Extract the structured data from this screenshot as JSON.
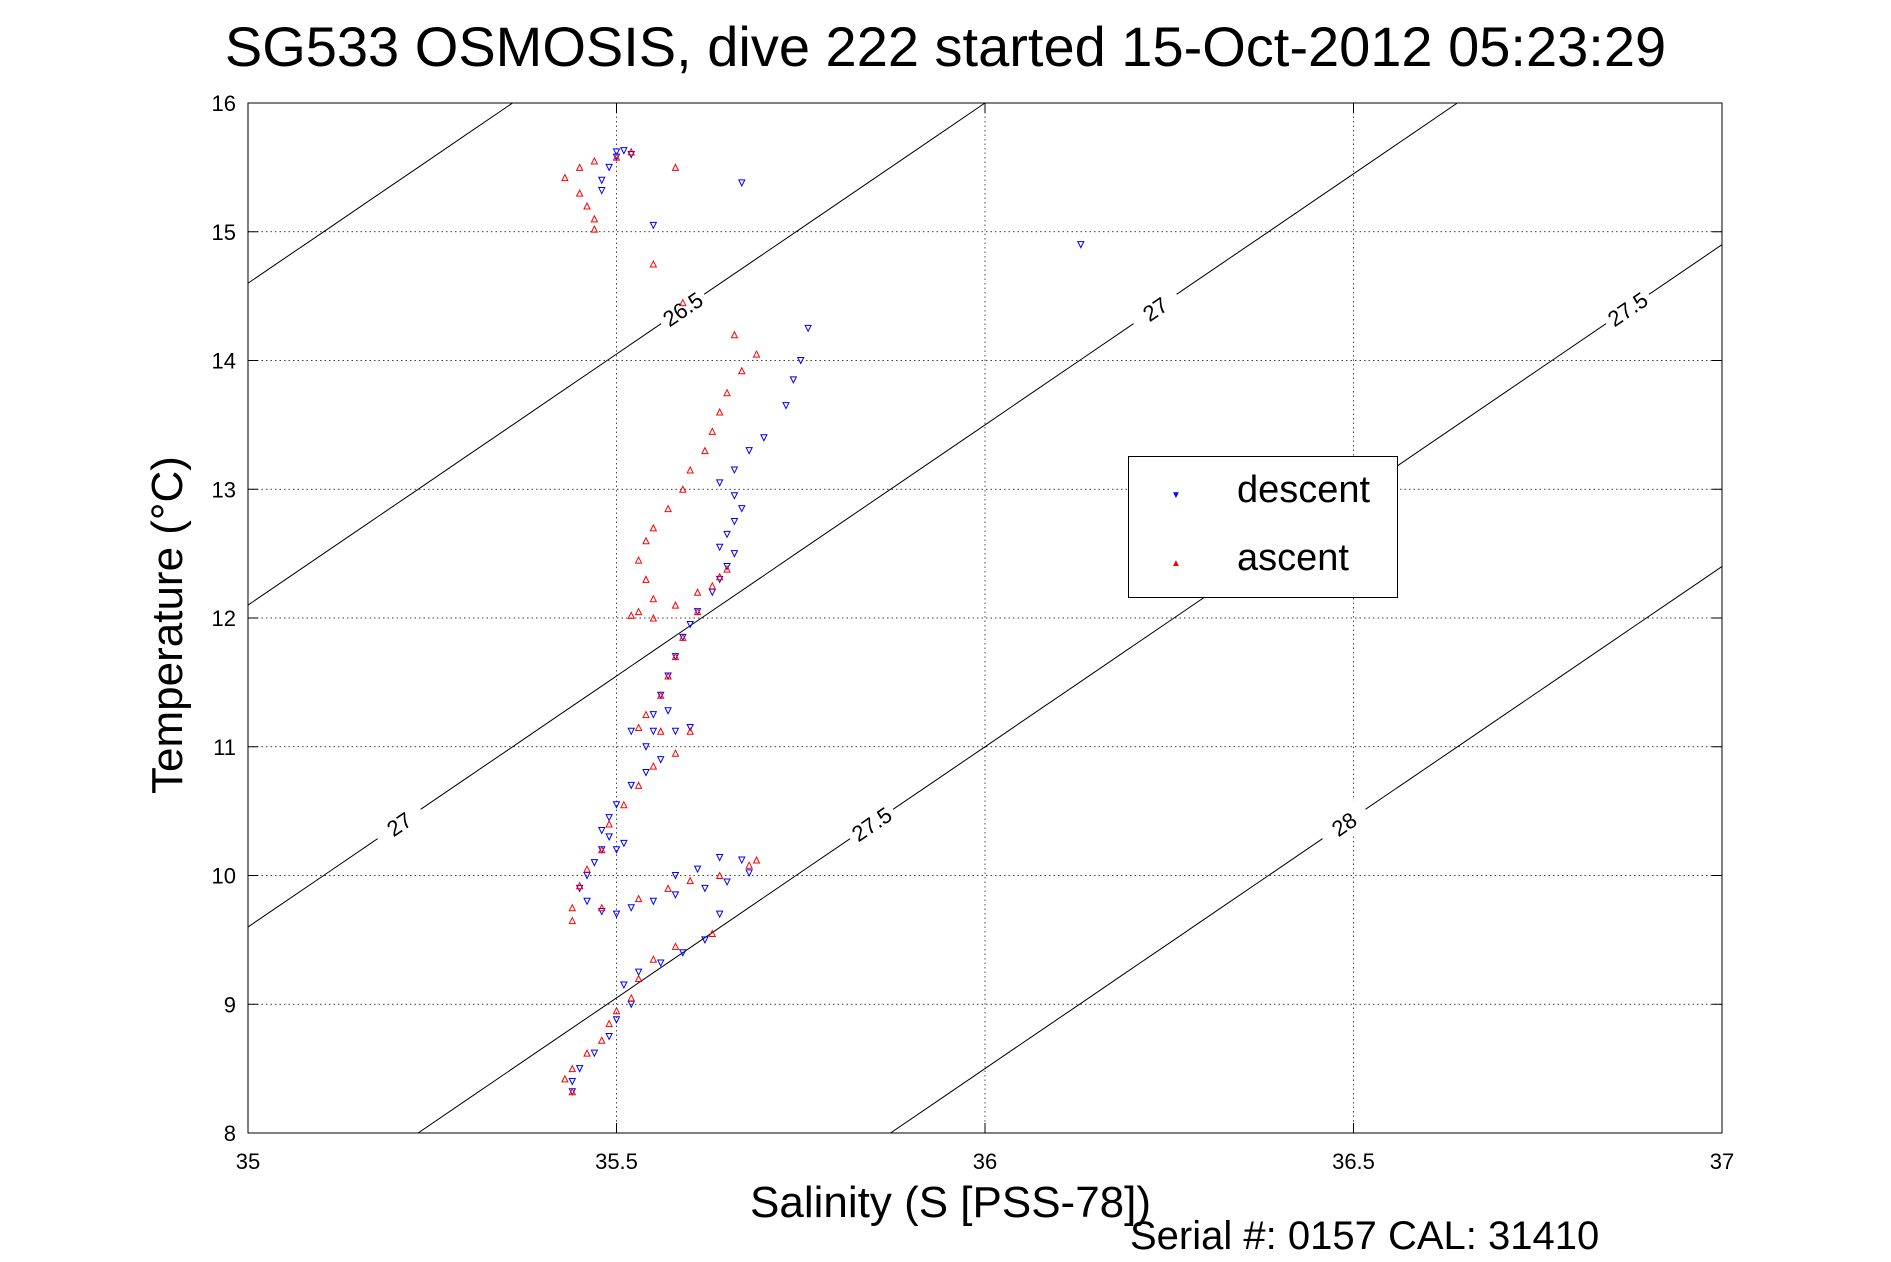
{
  "chart_data": {
    "type": "scatter",
    "title": "SG533 OSMOSIS, dive 222 started 15-Oct-2012 05:23:29",
    "xlabel": "Salinity (S [PSS-78])",
    "ylabel": "Temperature (°C)",
    "xlim": [
      35,
      37
    ],
    "ylim": [
      8,
      16
    ],
    "xticks": [
      "35",
      "35.5",
      "36",
      "36.5",
      "37"
    ],
    "yticks": [
      "8",
      "9",
      "10",
      "11",
      "12",
      "13",
      "14",
      "15",
      "16"
    ],
    "grid": true,
    "legend_position": "right",
    "footer": "Serial #: 0157  CAL: 31410",
    "contour_levels": [
      "26",
      "26.5",
      "27",
      "27.5",
      "28"
    ],
    "series": [
      {
        "name": "descent",
        "color": "#0000ff",
        "marker": "down-triangle",
        "points": [
          [
            35.5,
            15.62
          ],
          [
            35.51,
            15.63
          ],
          [
            35.52,
            15.6
          ],
          [
            35.5,
            15.58
          ],
          [
            35.49,
            15.5
          ],
          [
            35.48,
            15.4
          ],
          [
            35.48,
            15.32
          ],
          [
            35.55,
            15.05
          ],
          [
            35.67,
            15.38
          ],
          [
            36.13,
            14.9
          ],
          [
            35.76,
            14.25
          ],
          [
            35.75,
            14.0
          ],
          [
            35.74,
            13.85
          ],
          [
            35.73,
            13.65
          ],
          [
            35.7,
            13.4
          ],
          [
            35.68,
            13.3
          ],
          [
            35.66,
            13.15
          ],
          [
            35.64,
            13.05
          ],
          [
            35.66,
            12.95
          ],
          [
            35.67,
            12.85
          ],
          [
            35.66,
            12.75
          ],
          [
            35.65,
            12.65
          ],
          [
            35.64,
            12.55
          ],
          [
            35.66,
            12.5
          ],
          [
            35.65,
            12.4
          ],
          [
            35.64,
            12.3
          ],
          [
            35.63,
            12.2
          ],
          [
            35.61,
            12.05
          ],
          [
            35.6,
            11.95
          ],
          [
            35.59,
            11.85
          ],
          [
            35.58,
            11.7
          ],
          [
            35.57,
            11.55
          ],
          [
            35.56,
            11.4
          ],
          [
            35.55,
            11.25
          ],
          [
            35.57,
            11.28
          ],
          [
            35.6,
            11.15
          ],
          [
            35.58,
            11.12
          ],
          [
            35.55,
            11.12
          ],
          [
            35.52,
            11.12
          ],
          [
            35.54,
            11.0
          ],
          [
            35.56,
            10.9
          ],
          [
            35.54,
            10.8
          ],
          [
            35.52,
            10.7
          ],
          [
            35.5,
            10.55
          ],
          [
            35.49,
            10.45
          ],
          [
            35.48,
            10.35
          ],
          [
            35.49,
            10.3
          ],
          [
            35.51,
            10.25
          ],
          [
            35.5,
            10.2
          ],
          [
            35.48,
            10.2
          ],
          [
            35.47,
            10.1
          ],
          [
            35.46,
            10.0
          ],
          [
            35.45,
            9.9
          ],
          [
            35.46,
            9.8
          ],
          [
            35.48,
            9.72
          ],
          [
            35.5,
            9.7
          ],
          [
            35.52,
            9.75
          ],
          [
            35.55,
            9.8
          ],
          [
            35.58,
            9.85
          ],
          [
            35.62,
            9.9
          ],
          [
            35.65,
            9.95
          ],
          [
            35.68,
            10.02
          ],
          [
            35.67,
            10.12
          ],
          [
            35.64,
            10.14
          ],
          [
            35.61,
            10.05
          ],
          [
            35.58,
            10.0
          ],
          [
            35.64,
            9.7
          ],
          [
            35.62,
            9.5
          ],
          [
            35.59,
            9.4
          ],
          [
            35.56,
            9.32
          ],
          [
            35.53,
            9.25
          ],
          [
            35.51,
            9.15
          ],
          [
            35.52,
            9.0
          ],
          [
            35.5,
            8.88
          ],
          [
            35.49,
            8.75
          ],
          [
            35.47,
            8.62
          ],
          [
            35.45,
            8.5
          ],
          [
            35.44,
            8.4
          ],
          [
            35.44,
            8.32
          ]
        ]
      },
      {
        "name": "ascent",
        "color": "#ff0000",
        "marker": "up-triangle",
        "points": [
          [
            35.52,
            15.62
          ],
          [
            35.5,
            15.58
          ],
          [
            35.47,
            15.55
          ],
          [
            35.45,
            15.5
          ],
          [
            35.43,
            15.42
          ],
          [
            35.45,
            15.3
          ],
          [
            35.46,
            15.2
          ],
          [
            35.47,
            15.1
          ],
          [
            35.47,
            15.02
          ],
          [
            35.58,
            15.5
          ],
          [
            35.55,
            14.75
          ],
          [
            35.59,
            14.45
          ],
          [
            35.66,
            14.2
          ],
          [
            35.69,
            14.05
          ],
          [
            35.67,
            13.92
          ],
          [
            35.65,
            13.75
          ],
          [
            35.64,
            13.6
          ],
          [
            35.63,
            13.45
          ],
          [
            35.62,
            13.3
          ],
          [
            35.6,
            13.15
          ],
          [
            35.59,
            13.0
          ],
          [
            35.57,
            12.85
          ],
          [
            35.55,
            12.7
          ],
          [
            35.54,
            12.6
          ],
          [
            35.53,
            12.45
          ],
          [
            35.54,
            12.3
          ],
          [
            35.55,
            12.15
          ],
          [
            35.53,
            12.05
          ],
          [
            35.52,
            12.02
          ],
          [
            35.55,
            12.0
          ],
          [
            35.58,
            12.1
          ],
          [
            35.61,
            12.2
          ],
          [
            35.64,
            12.32
          ],
          [
            35.65,
            12.38
          ],
          [
            35.63,
            12.25
          ],
          [
            35.61,
            12.05
          ],
          [
            35.59,
            11.85
          ],
          [
            35.58,
            11.7
          ],
          [
            35.57,
            11.55
          ],
          [
            35.56,
            11.4
          ],
          [
            35.54,
            11.25
          ],
          [
            35.53,
            11.15
          ],
          [
            35.56,
            11.12
          ],
          [
            35.6,
            11.12
          ],
          [
            35.58,
            10.95
          ],
          [
            35.55,
            10.85
          ],
          [
            35.53,
            10.7
          ],
          [
            35.51,
            10.55
          ],
          [
            35.49,
            10.4
          ],
          [
            35.48,
            10.2
          ],
          [
            35.46,
            10.05
          ],
          [
            35.45,
            9.92
          ],
          [
            35.44,
            9.75
          ],
          [
            35.44,
            9.65
          ],
          [
            35.48,
            9.75
          ],
          [
            35.53,
            9.82
          ],
          [
            35.57,
            9.9
          ],
          [
            35.6,
            9.96
          ],
          [
            35.64,
            10.0
          ],
          [
            35.68,
            10.08
          ],
          [
            35.69,
            10.12
          ],
          [
            35.63,
            9.55
          ],
          [
            35.58,
            9.45
          ],
          [
            35.55,
            9.35
          ],
          [
            35.53,
            9.2
          ],
          [
            35.52,
            9.05
          ],
          [
            35.5,
            8.95
          ],
          [
            35.49,
            8.85
          ],
          [
            35.48,
            8.72
          ],
          [
            35.46,
            8.62
          ],
          [
            35.44,
            8.5
          ],
          [
            35.43,
            8.42
          ],
          [
            35.44,
            8.32
          ]
        ]
      }
    ]
  }
}
